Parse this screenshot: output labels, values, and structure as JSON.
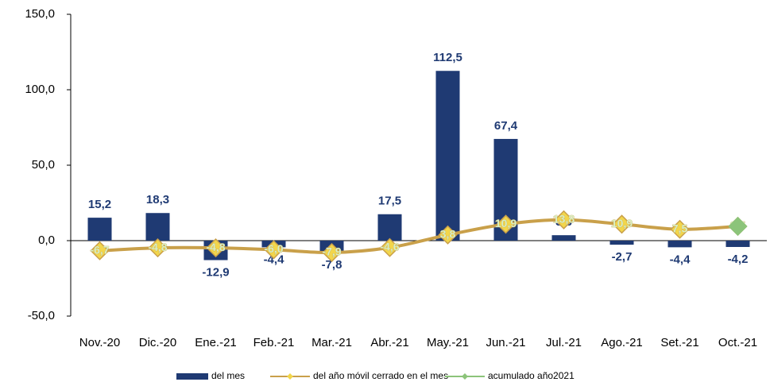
{
  "chart_data": {
    "type": "bar-line",
    "categories": [
      "Nov.-20",
      "Dic.-20",
      "Ene.-21",
      "Feb.-21",
      "Mar.-21",
      "Abr.-21",
      "May.-21",
      "Jun.-21",
      "Jul.-21",
      "Ago.-21",
      "Set.-21",
      "Oct.-21"
    ],
    "series": [
      {
        "name": "del mes",
        "type": "bar",
        "color": "#1f3a73",
        "values": [
          15.2,
          18.3,
          -12.9,
          -4.4,
          -7.8,
          17.5,
          112.5,
          67.4,
          3.6,
          -2.7,
          -4.4,
          -4.2
        ],
        "value_labels": [
          "15,2",
          "18,3",
          "-12,9",
          "-4,4",
          "-7,8",
          "17,5",
          "112,5",
          "67,4",
          "3,6",
          "-2,7",
          "-4,4",
          "-4,2"
        ]
      },
      {
        "name": "del año móvil cerrado en el mes",
        "type": "line",
        "color": "#c9a04a",
        "marker_color": "#f2d64b",
        "values": [
          -6.7,
          -4.8,
          -4.8,
          -6.0,
          -7.9,
          -4.6,
          3.8,
          10.9,
          13.8,
          10.9,
          7.5,
          9.5
        ],
        "value_labels": [
          "-6,7",
          "-4,8",
          "-4,8",
          "-6,0",
          "-7,9",
          "-4,6",
          "3,8",
          "10,9",
          "13,8",
          "10,9",
          "7,5",
          "9,5"
        ]
      },
      {
        "name": "acumulado año2021",
        "type": "line",
        "color": "#8cc47a",
        "marker_color": "#8cc47a",
        "values": [
          null,
          null,
          null,
          null,
          null,
          null,
          null,
          null,
          null,
          null,
          null,
          9.5
        ]
      }
    ],
    "ylim": [
      -50,
      150
    ],
    "yticks": [
      {
        "value": -50,
        "label": "-50,0"
      },
      {
        "value": 0,
        "label": "0,0"
      },
      {
        "value": 50,
        "label": "50,0"
      },
      {
        "value": 100,
        "label": "100,0"
      },
      {
        "value": 150,
        "label": "150,0"
      }
    ]
  }
}
